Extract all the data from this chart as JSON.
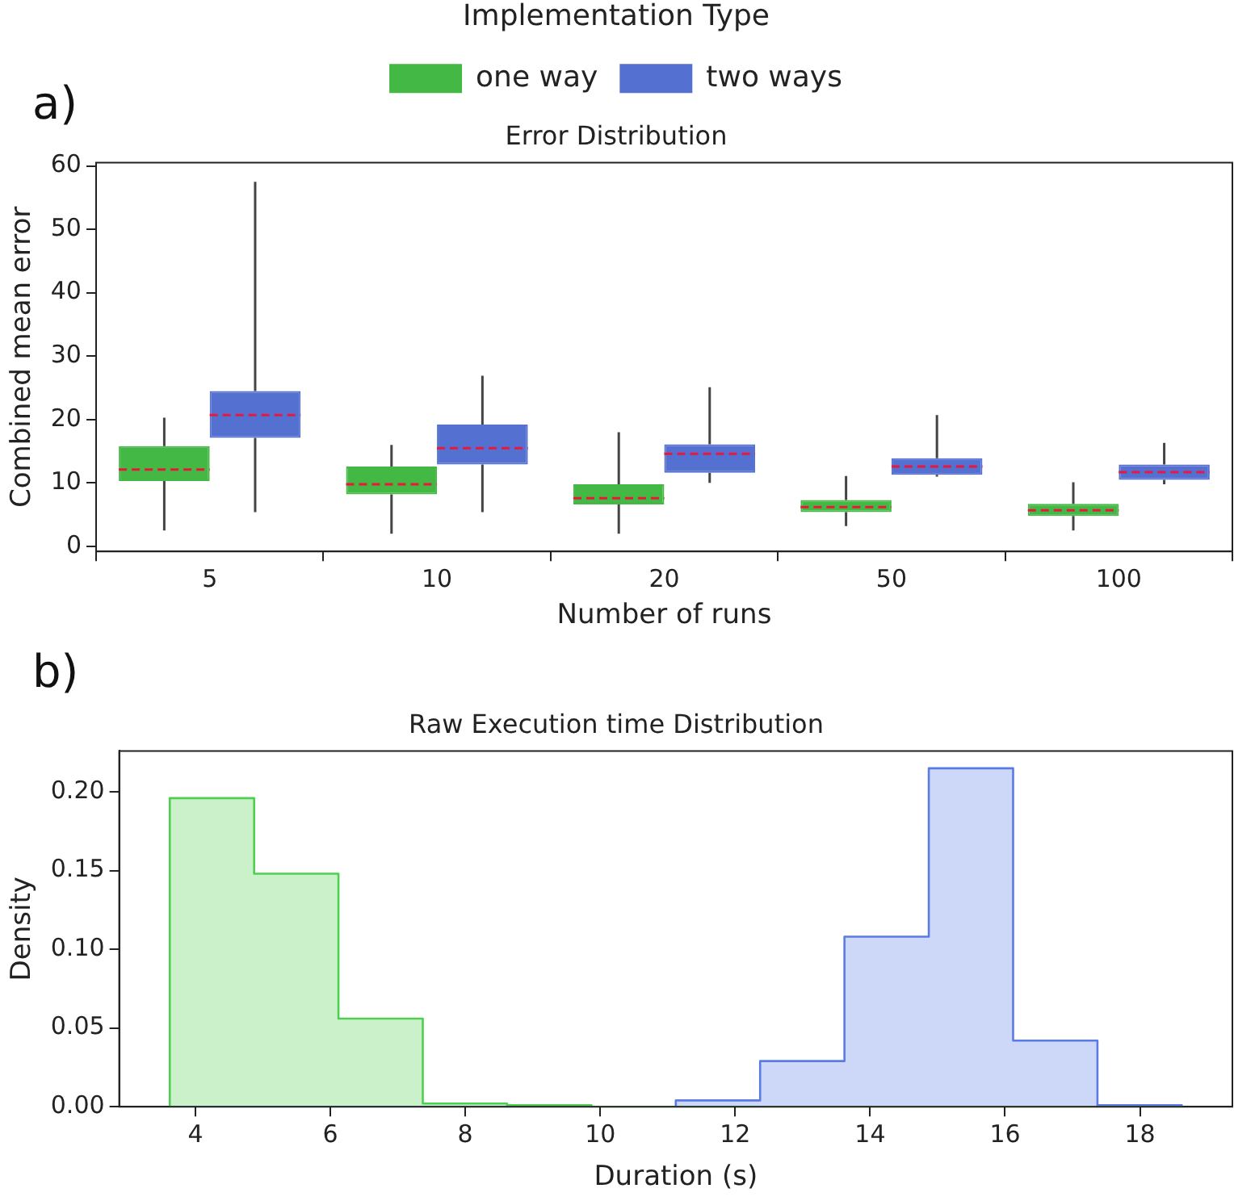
{
  "chart_data": [
    {
      "type": "box",
      "title": "Error Distribution",
      "xlabel": "Number of runs",
      "ylabel": "Combined mean error",
      "legend_title": "Implementation Type",
      "legend": "top",
      "annotations": [
        "a)"
      ],
      "categories": [
        "5",
        "10",
        "20",
        "50",
        "100"
      ],
      "ylim": [
        -0.8,
        60.5
      ],
      "yticks": [
        0,
        10,
        20,
        30,
        40,
        50,
        60
      ],
      "grid": false,
      "series": [
        {
          "name": "one way",
          "color": "#44b844",
          "boxes": [
            {
              "low": 2.5,
              "q1": 10.3,
              "median": 12.1,
              "q3": 15.8,
              "high": 20.3
            },
            {
              "low": 2.0,
              "q1": 8.2,
              "median": 9.8,
              "q3": 12.6,
              "high": 16.0
            },
            {
              "low": 2.0,
              "q1": 6.6,
              "median": 7.6,
              "q3": 9.8,
              "high": 18.0
            },
            {
              "low": 3.2,
              "q1": 5.4,
              "median": 6.2,
              "q3": 7.3,
              "high": 11.1
            },
            {
              "low": 2.5,
              "q1": 4.8,
              "median": 5.7,
              "q3": 6.7,
              "high": 10.1
            }
          ]
        },
        {
          "name": "two ways",
          "color": "#5470d0",
          "boxes": [
            {
              "low": 5.4,
              "q1": 17.1,
              "median": 20.7,
              "q3": 24.5,
              "high": 57.5
            },
            {
              "low": 5.4,
              "q1": 12.9,
              "median": 15.5,
              "q3": 19.2,
              "high": 26.9
            },
            {
              "low": 10.0,
              "q1": 11.6,
              "median": 14.6,
              "q3": 16.1,
              "high": 25.1
            },
            {
              "low": 11.0,
              "q1": 11.3,
              "median": 12.6,
              "q3": 13.9,
              "high": 20.7
            },
            {
              "low": 9.8,
              "q1": 10.5,
              "median": 11.7,
              "q3": 12.9,
              "high": 16.3
            }
          ]
        }
      ]
    },
    {
      "type": "histogram",
      "title": "Raw Execution time Distribution",
      "xlabel": "Duration (s)",
      "ylabel": "Density",
      "annotations": [
        "b)"
      ],
      "legend": false,
      "grid": false,
      "bins": [
        3.62,
        4.87,
        6.12,
        7.37,
        8.62,
        9.87,
        11.12,
        12.37,
        13.62,
        14.87,
        16.12,
        17.37,
        18.62
      ],
      "xlim": [
        2.87,
        19.37
      ],
      "xticks": [
        4,
        6,
        8,
        10,
        12,
        14,
        16,
        18
      ],
      "ylim": [
        0,
        0.226
      ],
      "yticks": [
        {
          "value": 0,
          "label": "0.00"
        },
        {
          "value": 0.05,
          "label": "0.05"
        },
        {
          "value": 0.1,
          "label": "0.10"
        },
        {
          "value": 0.15,
          "label": "0.15"
        },
        {
          "value": 0.2,
          "label": "0.20"
        }
      ],
      "series": [
        {
          "color": "#4fcf4f",
          "values": [
            0.196,
            0.148,
            0.056,
            0.002,
            0.001,
            0,
            0,
            0,
            0,
            0,
            0,
            0
          ]
        },
        {
          "color": "#5a7be6",
          "values": [
            0,
            0,
            0,
            0,
            0,
            0,
            0.004,
            0.029,
            0.108,
            0.215,
            0.042,
            0.001
          ]
        }
      ]
    }
  ]
}
